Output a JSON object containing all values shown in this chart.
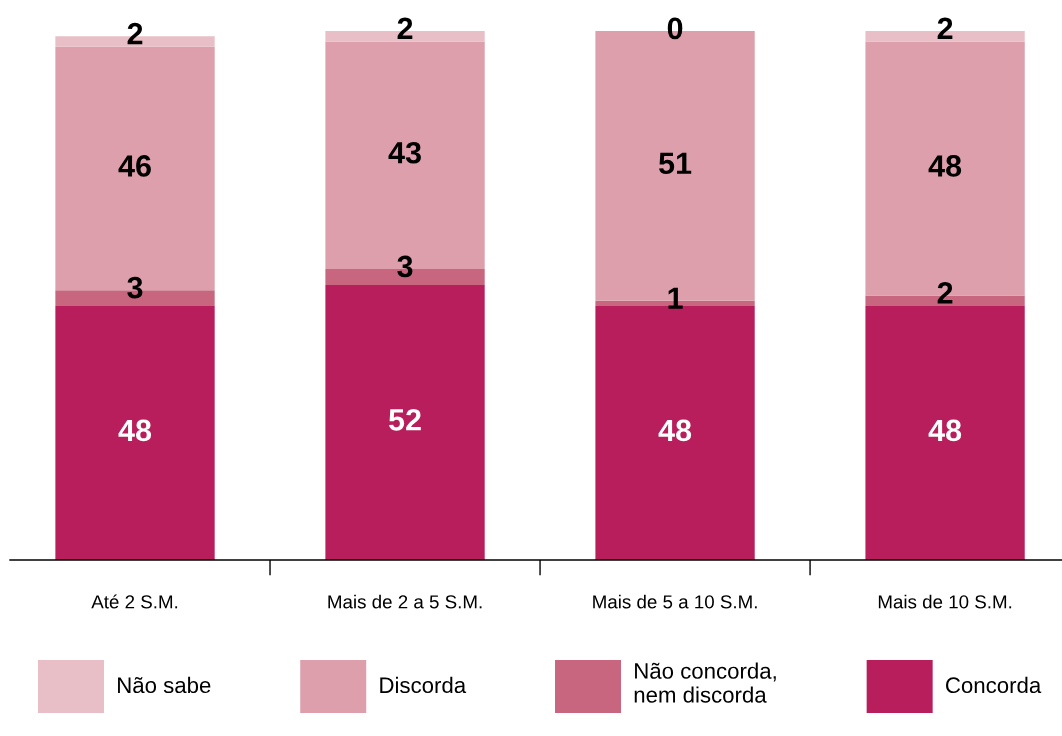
{
  "chart_data": {
    "type": "bar",
    "stacked": true,
    "categories": [
      "Até 2 S.M.",
      "Mais de 2 a 5 S.M.",
      "Mais de 5 a 10 S.M.",
      "Mais de 10 S.M."
    ],
    "series": [
      {
        "name": "Concorda",
        "color": "#b81e5c",
        "values": [
          48,
          52,
          48,
          48
        ]
      },
      {
        "name": "Não concorda,\nnem discorda",
        "color": "#c7667e",
        "values": [
          3,
          3,
          1,
          2
        ]
      },
      {
        "name": "Discorda",
        "color": "#dc9fab",
        "values": [
          46,
          43,
          51,
          48
        ]
      },
      {
        "name": "Não sabe",
        "color": "#e8bfc6",
        "values": [
          2,
          2,
          0,
          2
        ]
      }
    ],
    "data_labels": true,
    "legend": "bottom",
    "grid": false,
    "tick_labels": "x"
  }
}
